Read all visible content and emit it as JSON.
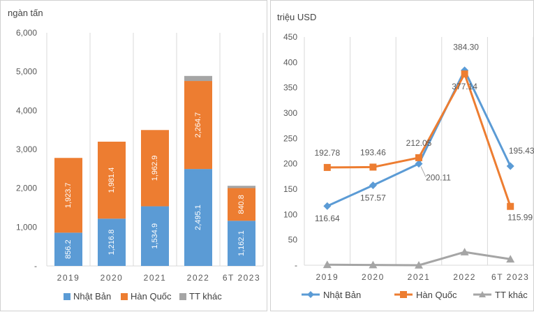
{
  "chart_data": [
    {
      "type": "bar",
      "stacked": true,
      "unit_label": "ngàn tấn",
      "categories": [
        "2019",
        "2020",
        "2021",
        "2022",
        "6T 2023"
      ],
      "series": [
        {
          "name": "Nhật Bản",
          "color": "#5B9BD5",
          "values": [
            856.2,
            1216.8,
            1534.9,
            2495.1,
            1162.1
          ],
          "labels": [
            "856.2",
            "1,216.8",
            "1,534.9",
            "2,495.1",
            "1,162.1"
          ]
        },
        {
          "name": "Hàn Quốc",
          "color": "#ED7D31",
          "values": [
            1923.7,
            1981.4,
            1962.9,
            2264.7,
            840.8
          ],
          "labels": [
            "1,923.7",
            "1,981.4",
            "1,962.9",
            "2,264.7",
            "840.8"
          ]
        },
        {
          "name": "TT khác",
          "color": "#A5A5A5",
          "values": [
            0,
            0,
            0,
            130,
            60
          ],
          "labels": [
            "",
            "",
            "",
            "",
            ""
          ]
        }
      ],
      "ylim": [
        0,
        6000
      ],
      "yticks": [
        0,
        1000,
        2000,
        3000,
        4000,
        5000,
        6000
      ],
      "ytick_labels": [
        "-",
        "1,000",
        "2,000",
        "3,000",
        "4,000",
        "5,000",
        "6,000"
      ],
      "grid": "vertical",
      "legend": "bottom"
    },
    {
      "type": "line",
      "unit_label": "triệu USD",
      "categories": [
        "2019",
        "2020",
        "2021",
        "2022",
        "6T 2023"
      ],
      "series": [
        {
          "name": "Nhật Bản",
          "color": "#5B9BD5",
          "marker": "diamond",
          "values": [
            116.64,
            157.57,
            200.11,
            384.3,
            195.43
          ],
          "labels": [
            "116.64",
            "157.57",
            "200.11",
            "384.30",
            "195.43"
          ]
        },
        {
          "name": "Hàn Quốc",
          "color": "#ED7D31",
          "marker": "square",
          "values": [
            192.78,
            193.46,
            212.05,
            377.14,
            115.99
          ],
          "labels": [
            "192.78",
            "193.46",
            "212.05",
            "377.14",
            "115.99"
          ]
        },
        {
          "name": "TT khác",
          "color": "#A5A5A5",
          "marker": "triangle",
          "values": [
            1,
            0.5,
            0,
            26,
            12
          ],
          "labels": [
            "",
            "",
            "",
            "",
            ""
          ]
        }
      ],
      "ylim": [
        0,
        450
      ],
      "yticks": [
        0,
        50,
        100,
        150,
        200,
        250,
        300,
        350,
        400,
        450
      ],
      "ytick_labels": [
        "-",
        "50",
        "100",
        "150",
        "200",
        "250",
        "300",
        "350",
        "400",
        "450"
      ],
      "grid": "vertical",
      "legend": "bottom"
    }
  ]
}
